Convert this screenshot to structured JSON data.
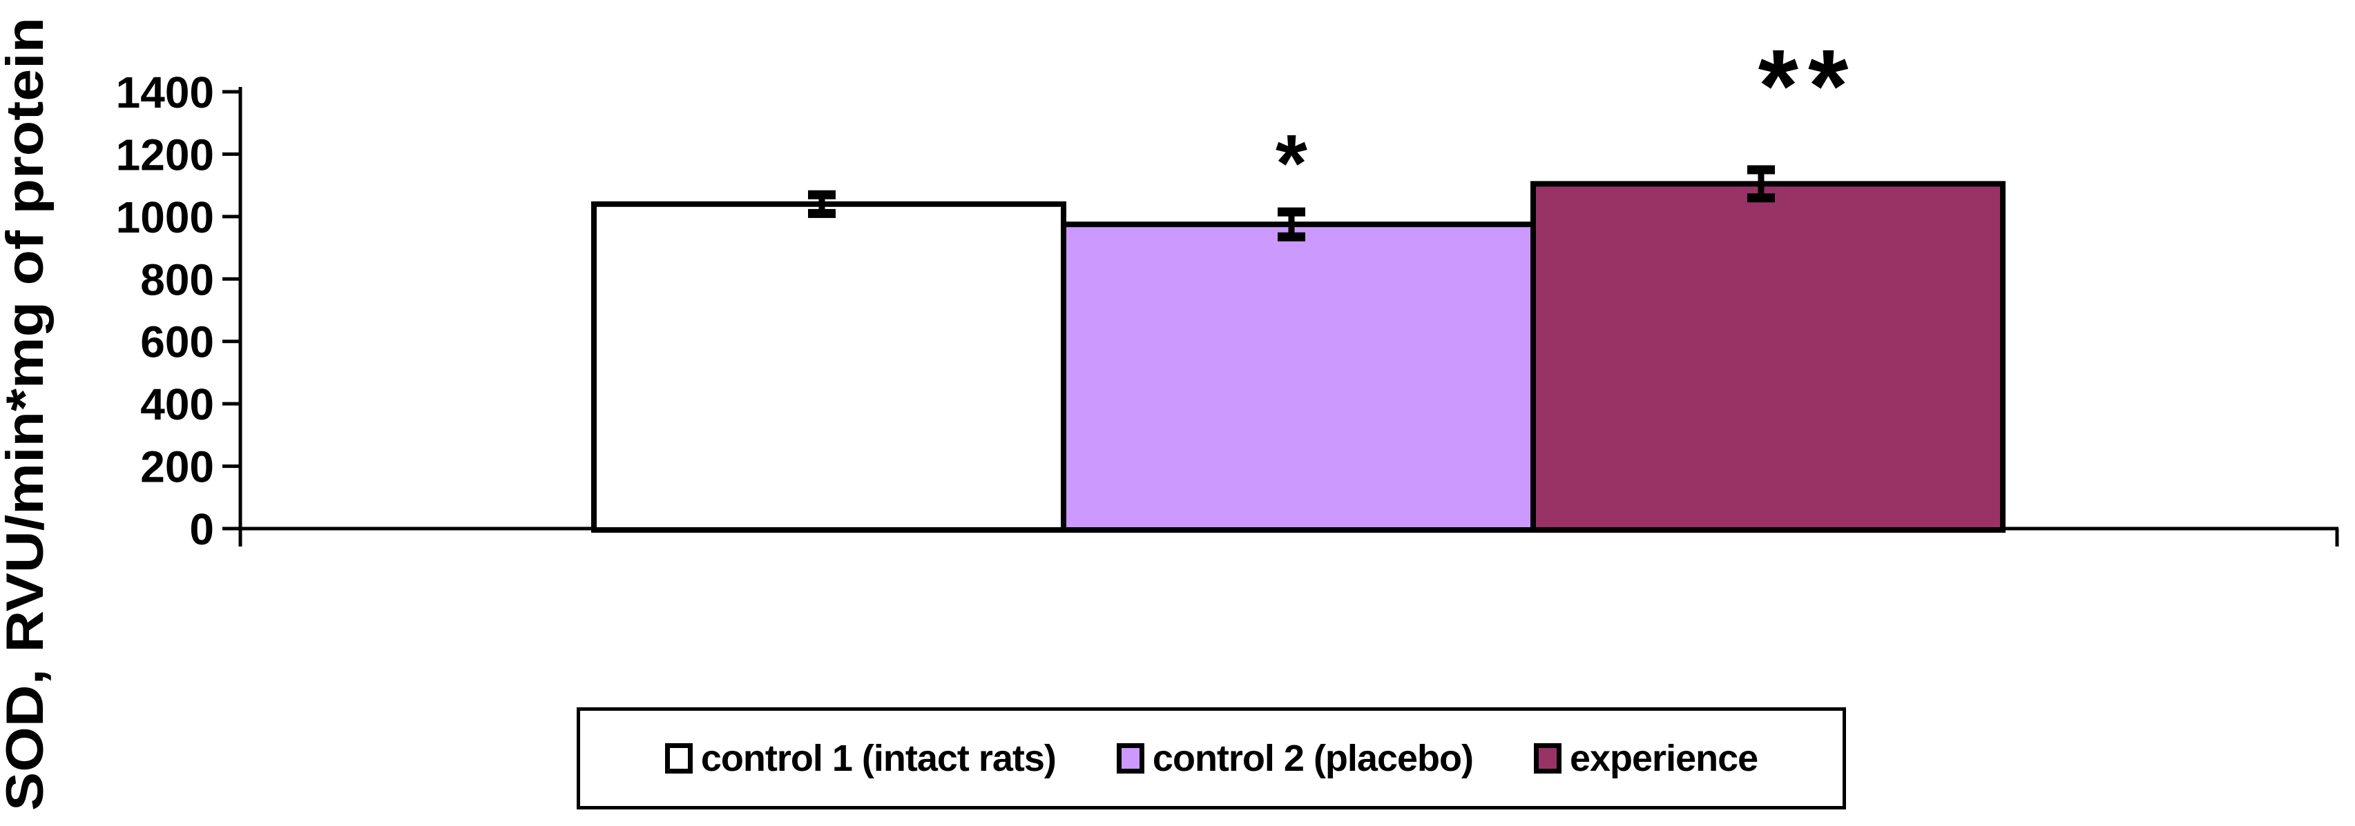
{
  "chart_data": {
    "type": "bar",
    "title": "",
    "xlabel": "",
    "ylabel": "SOD, RVU/min*mg of protein",
    "ylim": [
      0,
      1400
    ],
    "yticks": [
      0,
      200,
      400,
      600,
      800,
      1000,
      1200,
      1400
    ],
    "grid": false,
    "legend_position": "bottom",
    "categories": [
      "control 1 (intact rats)",
      "control 2 (placebo)",
      "experience"
    ],
    "series": [
      {
        "name": "control 1 (intact rats)",
        "value": 1040,
        "error": 30,
        "color": "#FFFFFF",
        "annotation": ""
      },
      {
        "name": "control 2 (placebo)",
        "value": 975,
        "error": 40,
        "color": "#CC99FF",
        "annotation": "*"
      },
      {
        "name": "experience",
        "value": 1105,
        "error": 45,
        "color": "#993366",
        "annotation": "**"
      }
    ],
    "annotation_color": "#000000",
    "axis_color": "#000000",
    "bar_border_color": "#000000"
  }
}
